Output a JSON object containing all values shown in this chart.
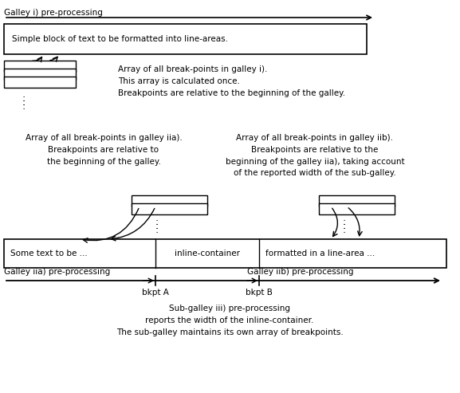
{
  "bg_color": "#ffffff",
  "title": "Galley i) pre-processing",
  "title2a": "Galley iia) pre-processing",
  "title2b": "Galley iib) pre-processing",
  "main_box_text": "Simple block of text to be formatted into line-areas.",
  "annotation1": "Array of all break-points in galley i).\nThis array is calculated once.\nBreakpoints are relative to the beginning of the galley.",
  "annotation2a": "Array of all break-points in galley iia).\nBreakpoints are relative to\nthe beginning of the galley.",
  "annotation2b": "Array of all break-points in galley iib).\nBreakpoints are relative to the\nbeginning of the galley iia), taking account\nof the reported width of the sub-galley.",
  "bottom_text1": "Some text to be ...",
  "bottom_text2": "inline-container",
  "bottom_text3": "formatted in a line-area ...",
  "sub_galley_text": "Sub-galley iii) pre-processing\nreports the width of the inline-container.\nThe sub-galley maintains its own array of breakpoints.",
  "bkpt_a": "bkpt A",
  "bkpt_b": "bkpt B",
  "fs": 7.5
}
